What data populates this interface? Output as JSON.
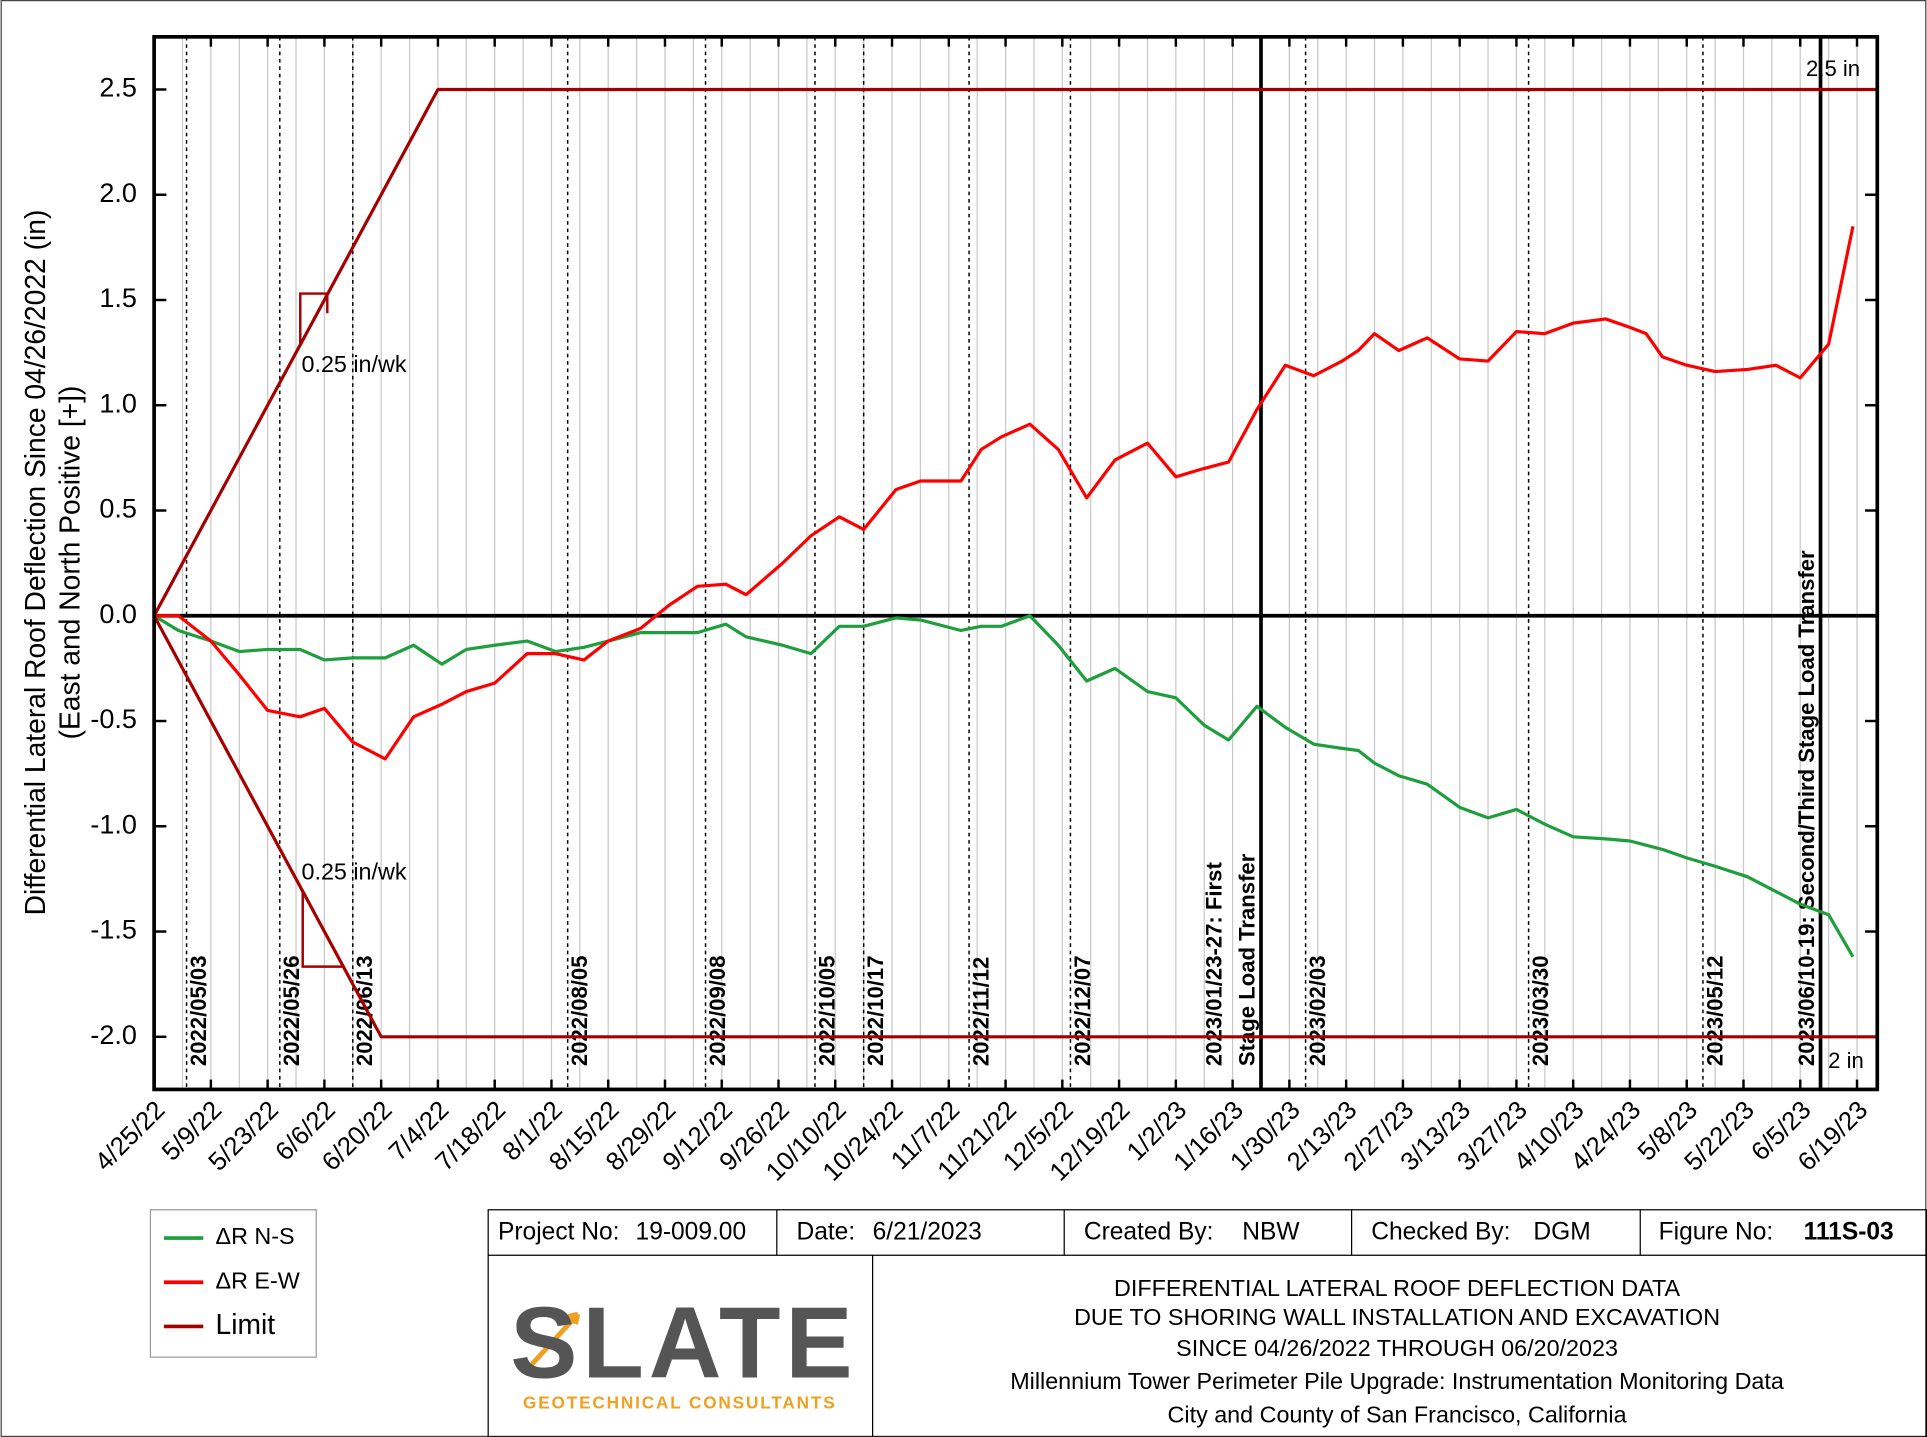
{
  "chart_data": {
    "type": "line",
    "y_label": [
      "Differential Lateral Roof Deflection Since 04/26/2022 (in)",
      "(East and North Positive [+])"
    ],
    "xlim": [
      "4/25/22",
      "6/24/23"
    ],
    "xticks": [
      "4/25/22",
      "5/9/22",
      "5/23/22",
      "6/6/22",
      "6/20/22",
      "7/4/22",
      "7/18/22",
      "8/1/22",
      "8/15/22",
      "8/29/22",
      "9/12/22",
      "9/26/22",
      "10/10/22",
      "10/24/22",
      "11/7/22",
      "11/21/22",
      "12/5/22",
      "12/19/22",
      "1/2/23",
      "1/16/23",
      "1/30/23",
      "2/13/23",
      "2/27/23",
      "3/13/23",
      "3/27/23",
      "4/10/23",
      "4/24/23",
      "5/8/23",
      "5/22/23",
      "6/5/23",
      "6/19/23"
    ],
    "ylim": [
      -2.25,
      2.75
    ],
    "yticks": [
      {
        "value": -2,
        "label": "-2.0"
      },
      -1.5,
      {
        "value": -1,
        "label": "-1.0"
      },
      -0.5,
      {
        "value": 0,
        "label": "0.0"
      },
      0.5,
      {
        "value": 1,
        "label": "1.0"
      },
      1.5,
      {
        "value": 2,
        "label": "2.0"
      },
      2.5
    ],
    "grid": "x",
    "x": [
      "4/25/22",
      "5/1/22",
      "5/9/22",
      "5/16/22",
      "5/23/22",
      "5/31/22",
      "6/6/22",
      "6/13/22",
      "6/21/22",
      "6/28/22",
      "7/5/22",
      "7/11/22",
      "7/18/22",
      "7/26/22",
      "8/2/22",
      "8/9/22",
      "8/15/22",
      "8/23/22",
      "8/30/22",
      "9/6/22",
      "9/13/22",
      "9/18/22",
      "9/27/22",
      "10/4/22",
      "10/11/22",
      "10/17/22",
      "10/25/22",
      "10/31/22",
      "11/10/22",
      "11/15/22",
      "11/20/22",
      "11/27/22",
      "12/4/22",
      "12/11/22",
      "12/18/22",
      "12/26/22",
      "1/2/23",
      "1/9/23",
      "1/15/23",
      "1/22/23",
      "1/29/23",
      "2/5/23",
      "2/12/23",
      "2/16/23",
      "2/20/23",
      "2/26/23",
      "3/5/23",
      "3/13/23",
      "3/20/23",
      "3/27/23",
      "4/3/23",
      "4/10/23",
      "4/18/23",
      "4/24/23",
      "4/28/23",
      "5/2/23",
      "5/8/23",
      "5/15/23",
      "5/23/23",
      "5/30/23",
      "6/5/23",
      "6/12/23",
      "6/18/23"
    ],
    "series": [
      {
        "name": "ΔR N-S",
        "color": "#1e9e3c",
        "values": [
          0,
          -0.07,
          -0.12,
          -0.17,
          -0.16,
          -0.16,
          -0.21,
          -0.2,
          -0.2,
          -0.14,
          -0.23,
          -0.16,
          -0.14,
          -0.12,
          -0.17,
          -0.15,
          -0.12,
          -0.08,
          -0.08,
          -0.08,
          -0.04,
          -0.1,
          -0.14,
          -0.18,
          -0.05,
          -0.05,
          -0.01,
          -0.02,
          -0.07,
          -0.05,
          -0.05,
          0,
          -0.14,
          -0.31,
          -0.25,
          -0.36,
          -0.39,
          -0.52,
          -0.59,
          -0.43,
          -0.53,
          -0.61,
          -0.63,
          -0.64,
          -0.7,
          -0.76,
          -0.8,
          -0.91,
          -0.96,
          -0.92,
          -0.99,
          -1.05,
          -1.06,
          -1.07,
          -1.09,
          -1.11,
          -1.15,
          -1.19,
          -1.24,
          -1.31,
          -1.37,
          -1.42,
          -1.62
        ]
      },
      {
        "name": "ΔR E-W",
        "color": "#ff0000",
        "values": [
          0,
          0,
          -0.12,
          -0.28,
          -0.45,
          -0.48,
          -0.44,
          -0.6,
          -0.68,
          -0.48,
          -0.42,
          -0.36,
          -0.32,
          -0.18,
          -0.18,
          -0.21,
          -0.12,
          -0.06,
          0.05,
          0.14,
          0.15,
          0.1,
          0.25,
          0.38,
          0.47,
          0.41,
          0.6,
          0.64,
          0.64,
          0.79,
          0.85,
          0.91,
          0.79,
          0.56,
          0.74,
          0.82,
          0.66,
          0.7,
          0.73,
          0.98,
          1.19,
          1.14,
          1.21,
          1.26,
          1.34,
          1.26,
          1.32,
          1.22,
          1.21,
          1.35,
          1.34,
          1.39,
          1.41,
          1.37,
          1.34,
          1.23,
          1.19,
          1.16,
          1.17,
          1.19,
          1.13,
          1.29,
          1.85
        ]
      },
      {
        "name": "Limit",
        "color": "#a50000",
        "x": [
          "4/25/22",
          "7/4/22",
          "6/24/23",
          null,
          "4/25/22",
          "6/20/22",
          "6/24/23"
        ],
        "values": [
          0,
          2.5,
          2.5,
          null,
          0,
          -2,
          -2
        ]
      }
    ],
    "events": [
      {
        "lines": [
          "2022/05/03"
        ],
        "style": "dotted"
      },
      {
        "lines": [
          "2022/05/26"
        ],
        "style": "dotted"
      },
      {
        "lines": [
          "2022/06/13"
        ],
        "style": "dotted"
      },
      {
        "lines": [
          "2022/08/05"
        ],
        "style": "dotted"
      },
      {
        "lines": [
          "2022/09/08"
        ],
        "style": "dotted"
      },
      {
        "lines": [
          "2022/10/05"
        ],
        "style": "dotted"
      },
      {
        "lines": [
          "2022/10/17"
        ],
        "style": "dotted"
      },
      {
        "lines": [
          "2022/11/12"
        ],
        "style": "dotted"
      },
      {
        "lines": [
          "2022/12/07"
        ],
        "style": "dotted"
      },
      {
        "lines": [
          "2023/01/23-27: First",
          "Stage Load Transfer"
        ],
        "style": "solid"
      },
      {
        "lines": [
          "2023/02/03"
        ],
        "style": "dotted"
      },
      {
        "lines": [
          "2023/03/30"
        ],
        "style": "dotted"
      },
      {
        "lines": [
          "2023/05/12"
        ],
        "style": "dotted"
      },
      {
        "lines": [
          "2023/06/10-19: Second/Third Stage Load Transfer"
        ],
        "style": "solid"
      }
    ],
    "annotations": [
      "0.25 in/wk",
      "0.25 in/wk",
      "2.5 in",
      "2 in"
    ]
  },
  "title_block": {
    "project_label": "Project No:",
    "project": "19-009.00",
    "date_label": "Date:",
    "date": "6/21/2023",
    "created_label": "Created By:",
    "created": "NBW",
    "checked_label": "Checked By:",
    "checked": "DGM",
    "figure_label": "Figure No:",
    "figure": "111S-03",
    "logo": "SLATE",
    "logo_tagline": "GEOTECHNICAL CONSULTANTS",
    "description": [
      "DIFFERENTIAL LATERAL ROOF DEFLECTION DATA",
      "DUE TO SHORING WALL INSTALLATION AND EXCAVATION",
      "SINCE 04/26/2022 THROUGH 06/20/2023",
      "Millennium Tower Perimeter Pile Upgrade: Instrumentation Monitoring Data",
      "City and County of San Francisco, California"
    ]
  }
}
